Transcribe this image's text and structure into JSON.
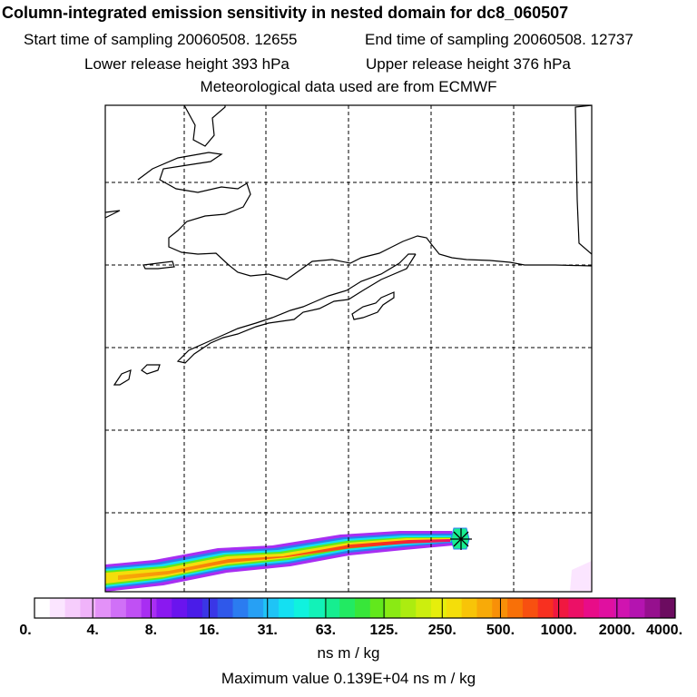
{
  "header": {
    "title": "Column-integrated emission sensitivity in nested domain for dc8_060507",
    "start_time": "Start time of sampling 20060508. 12655",
    "end_time": "End time of sampling 20060508. 12737",
    "lower_height": "Lower release height  393 hPa",
    "upper_height": "Upper release height  376 hPa",
    "met_source": "Meteorological data used are from ECMWF"
  },
  "colorbar": {
    "labels": [
      "0.",
      "4.",
      "8.",
      "16.",
      "31.",
      "63.",
      "125.",
      "250.",
      "500.",
      "1000.",
      "2000.",
      "4000."
    ],
    "colors": [
      "#ffffff",
      "#fbe5ff",
      "#f6cdfc",
      "#f0b3fa",
      "#e391f8",
      "#d070f7",
      "#c050f4",
      "#a82ef2",
      "#8a18f0",
      "#6a14ee",
      "#4a1ce8",
      "#3a36e6",
      "#2f58ea",
      "#2b7cf0",
      "#27a0f4",
      "#1fc4f6",
      "#14e0f2",
      "#10f2de",
      "#12f2b8",
      "#16ee90",
      "#22ea62",
      "#38e63a",
      "#62e81c",
      "#8aea14",
      "#acec10",
      "#ccee0e",
      "#e6ee0c",
      "#f4de0a",
      "#f8c408",
      "#f8aa08",
      "#f89008",
      "#f87008",
      "#f85010",
      "#f83020",
      "#f01840",
      "#ec1066",
      "#e80c88",
      "#e010a0",
      "#d014b0",
      "#b414b0",
      "#96108e",
      "#6c0c60"
    ],
    "units": "ns m / kg"
  },
  "maximum_value": "Maximum value  0.139E+04 ns m / kg",
  "map": {
    "release_marker": "release-location",
    "gridlines": "dashed"
  }
}
